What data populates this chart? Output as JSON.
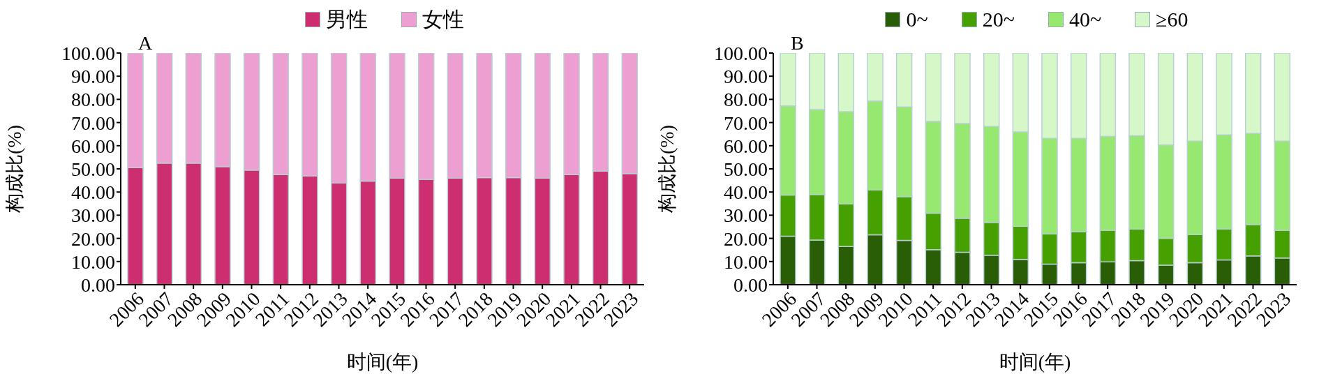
{
  "chart_data": [
    {
      "type": "bar",
      "title": "A",
      "stacked": true,
      "legend": "top",
      "xlabel": "时间(年)",
      "ylabel": "构成比(%)",
      "categories": [
        "2006",
        "2007",
        "2008",
        "2009",
        "2010",
        "2011",
        "2012",
        "2013",
        "2014",
        "2015",
        "2016",
        "2017",
        "2018",
        "2019",
        "2020",
        "2021",
        "2022",
        "2023"
      ],
      "ylim": [
        0,
        100
      ],
      "yticks": [
        {
          "value": 0,
          "label": "0.00"
        },
        {
          "value": 10,
          "label": "10.00"
        },
        {
          "value": 20,
          "label": "20.00"
        },
        {
          "value": 30,
          "label": "30.00"
        },
        {
          "value": 40,
          "label": "40.00"
        },
        {
          "value": 50,
          "label": "50.00"
        },
        {
          "value": 60,
          "label": "60.00"
        },
        {
          "value": 70,
          "label": "70.00"
        },
        {
          "value": 80,
          "label": "80.00"
        },
        {
          "value": 90,
          "label": "90.00"
        },
        {
          "value": 100,
          "label": "100.00"
        }
      ],
      "series": [
        {
          "name": "男性",
          "color": "#cc2e70",
          "values": [
            50.5,
            52.5,
            52.5,
            51,
            49.5,
            47.5,
            47,
            44,
            44.7,
            46,
            45.5,
            46,
            46.2,
            46.2,
            46,
            47.5,
            49,
            48
          ]
        },
        {
          "name": "女性",
          "color": "#ec9fd0",
          "values": [
            49.5,
            47.5,
            47.5,
            49,
            50.5,
            52.5,
            53,
            56,
            55.3,
            54,
            54.5,
            54,
            53.8,
            53.8,
            54,
            52.5,
            51,
            52
          ]
        }
      ]
    },
    {
      "type": "bar",
      "title": "B",
      "stacked": true,
      "legend": "top",
      "xlabel": "时间(年)",
      "ylabel": "构成比(%)",
      "categories": [
        "2006",
        "2007",
        "2008",
        "2009",
        "2010",
        "2011",
        "2012",
        "2013",
        "2014",
        "2015",
        "2016",
        "2017",
        "2018",
        "2019",
        "2020",
        "2021",
        "2022",
        "2023"
      ],
      "ylim": [
        0,
        100
      ],
      "yticks": [
        {
          "value": 0,
          "label": "0.00"
        },
        {
          "value": 10,
          "label": "10.00"
        },
        {
          "value": 20,
          "label": "20.00"
        },
        {
          "value": 30,
          "label": "30.00"
        },
        {
          "value": 40,
          "label": "40.00"
        },
        {
          "value": 50,
          "label": "50.00"
        },
        {
          "value": 60,
          "label": "60.00"
        },
        {
          "value": 70,
          "label": "70.00"
        },
        {
          "value": 80,
          "label": "80.00"
        },
        {
          "value": 90,
          "label": "90.00"
        },
        {
          "value": 100,
          "label": "100.00"
        }
      ],
      "series": [
        {
          "name": "0~",
          "color": "#2a5e06",
          "values": [
            20.9,
            19.3,
            16.5,
            21.5,
            19.1,
            15.1,
            14,
            12.7,
            10.9,
            8.9,
            9.5,
            9.9,
            10.4,
            8.4,
            9.5,
            10.7,
            12.4,
            11.5
          ]
        },
        {
          "name": "20~",
          "color": "#46a000",
          "values": [
            17.8,
            19.6,
            18.4,
            19.4,
            18.9,
            15.8,
            14.7,
            14.2,
            14.3,
            13,
            13.4,
            13.6,
            13.6,
            11.6,
            12.1,
            13.4,
            13.6,
            12
          ]
        },
        {
          "name": "40~",
          "color": "#96e870",
          "values": [
            38.5,
            36.7,
            39.8,
            38.4,
            38.7,
            39.6,
            40.9,
            41.4,
            40.8,
            41.3,
            40.3,
            40.5,
            40.3,
            40.3,
            40.4,
            40.6,
            39.3,
            38.5
          ]
        },
        {
          "name": "≥60",
          "color": "#d6f8c8",
          "values": [
            22.8,
            24.4,
            25.3,
            20.7,
            23.3,
            29.5,
            30.4,
            31.7,
            34,
            36.8,
            36.8,
            36,
            35.7,
            39.7,
            38,
            35.3,
            34.7,
            38
          ]
        }
      ]
    }
  ]
}
